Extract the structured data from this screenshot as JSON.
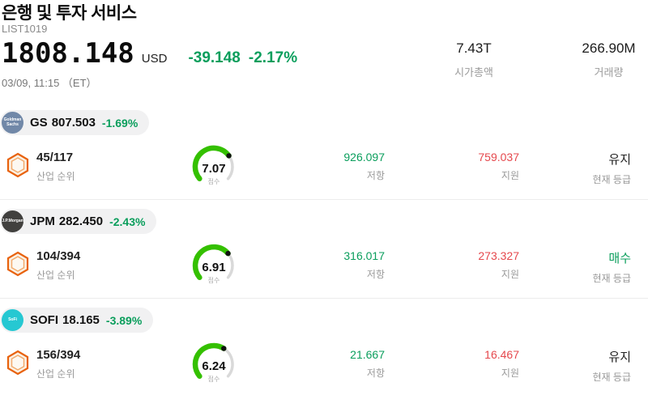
{
  "header": {
    "title": "은행 및 투자 서비스",
    "list_id": "LIST1019",
    "price": "1808.148",
    "currency": "USD",
    "change_value": "-39.148",
    "change_percent": "-2.17%",
    "datetime": "03/09, 11:15 （ET）",
    "market_cap": {
      "value": "7.43T",
      "label": "시가총액"
    },
    "volume": {
      "value": "266.90M",
      "label": "거래량"
    }
  },
  "labels": {
    "industry_rank": "산업 순위",
    "score": "점수",
    "resistance": "저항",
    "support": "지원",
    "current_rating": "현재 등급"
  },
  "colors": {
    "green": "#0a9e5c",
    "red": "#e5484d",
    "gauge_green": "#34c000",
    "gauge_track": "#d9d9d9"
  },
  "stocks": [
    {
      "ticker": "GS",
      "price": "807.503",
      "change": "-1.69%",
      "avatar_text": "Goldman Sachs",
      "avatar_color": "#7188a8",
      "rank": "45/117",
      "score": 7.07,
      "resistance": "926.097",
      "support": "759.037",
      "rating": "유지",
      "rating_color": "#222222"
    },
    {
      "ticker": "JPM",
      "price": "282.450",
      "change": "-2.43%",
      "avatar_text": "J.P.Morgan",
      "avatar_color": "#41403e",
      "rank": "104/394",
      "score": 6.91,
      "resistance": "316.017",
      "support": "273.327",
      "rating": "매수",
      "rating_color": "#0a9e5c"
    },
    {
      "ticker": "SOFI",
      "price": "18.165",
      "change": "-3.89%",
      "avatar_text": "SoFi",
      "avatar_color": "#26c8d2",
      "rank": "156/394",
      "score": 6.24,
      "resistance": "21.667",
      "support": "16.467",
      "rating": "유지",
      "rating_color": "#222222"
    }
  ]
}
